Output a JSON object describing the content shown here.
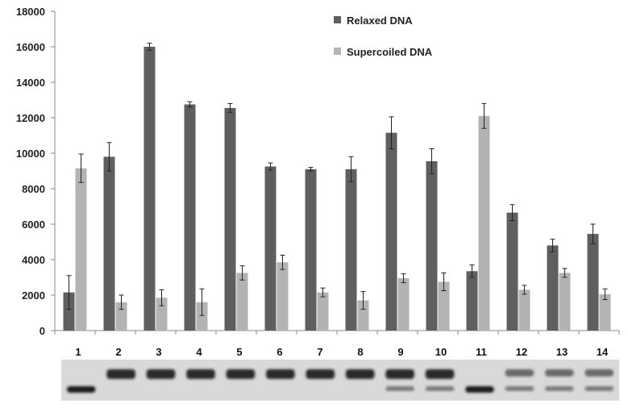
{
  "chart_data": {
    "type": "bar",
    "categories": [
      "1",
      "2",
      "3",
      "4",
      "5",
      "6",
      "7",
      "8",
      "9",
      "10",
      "11",
      "12",
      "13",
      "14"
    ],
    "series": [
      {
        "name": "Relaxed DNA",
        "color": "#5f5f5f",
        "values": [
          2150,
          9800,
          16000,
          12750,
          12550,
          9250,
          9100,
          9100,
          11150,
          9550,
          3350,
          6650,
          4800,
          5450
        ],
        "errors": [
          950,
          800,
          200,
          150,
          250,
          200,
          100,
          700,
          900,
          700,
          350,
          450,
          350,
          550
        ]
      },
      {
        "name": "Supercoiled DNA",
        "color": "#b3b3b3",
        "values": [
          9150,
          1600,
          1850,
          1600,
          3250,
          3850,
          2150,
          1700,
          2950,
          2750,
          12100,
          2300,
          3250,
          2050
        ],
        "errors": [
          800,
          400,
          450,
          750,
          400,
          400,
          250,
          500,
          250,
          500,
          700,
          250,
          250,
          300
        ]
      }
    ],
    "ylim": [
      0,
      18000
    ],
    "yticks": [
      0,
      2000,
      4000,
      6000,
      8000,
      10000,
      12000,
      14000,
      16000,
      18000
    ],
    "grid": false,
    "legend_position": "top-right",
    "gel_image": {
      "lanes": [
        "1",
        "2",
        "3",
        "4",
        "5",
        "6",
        "7",
        "8",
        "9",
        "10",
        "11",
        "12",
        "13",
        "14"
      ],
      "band_pattern": [
        "low",
        "high",
        "high",
        "high",
        "high",
        "high",
        "high",
        "high",
        "high+low",
        "high+low",
        "low",
        "high+low",
        "high+low",
        "high+low"
      ]
    }
  }
}
